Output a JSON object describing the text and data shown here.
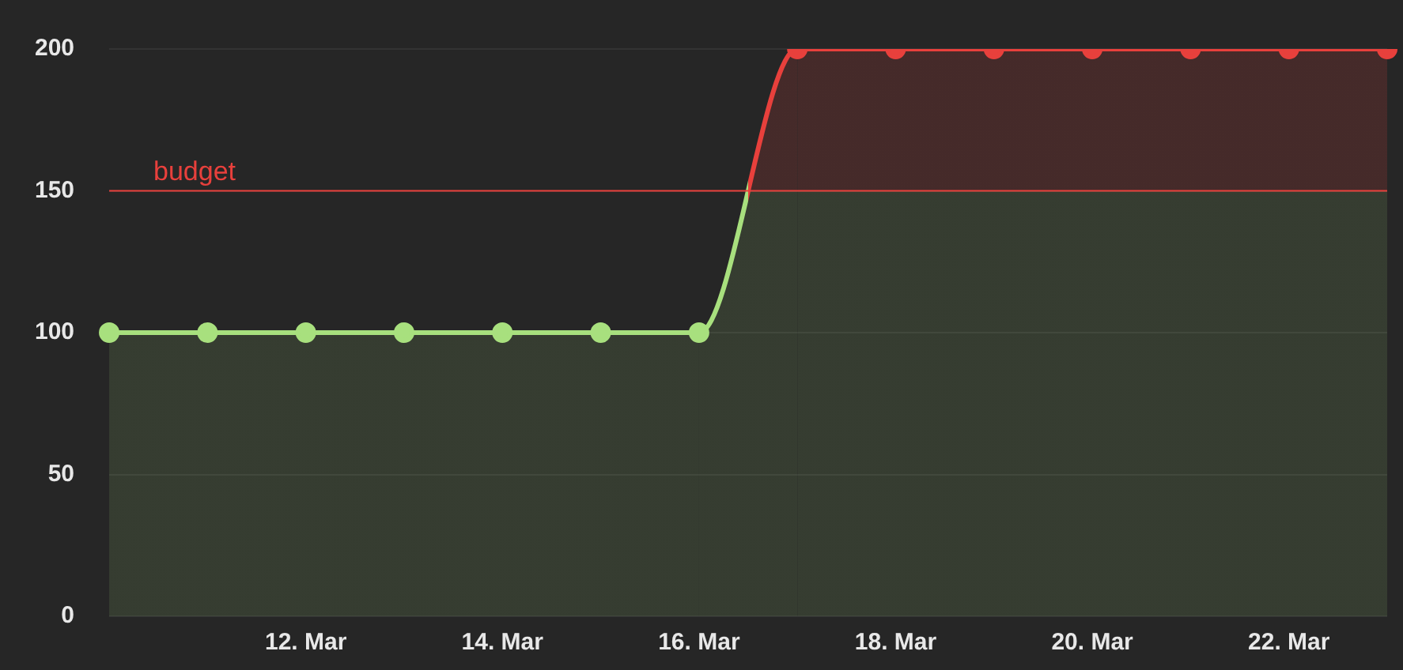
{
  "chart_data": {
    "type": "area",
    "categories": [
      null,
      null,
      "12. Mar",
      null,
      "14. Mar",
      null,
      "16. Mar",
      null,
      "18. Mar",
      null,
      "20. Mar",
      null,
      "22. Mar",
      null
    ],
    "series": [
      {
        "color": "#a8e07e",
        "colors": [
          "#a8e07e",
          "#a8e07e",
          "#a8e07e",
          "#a8e07e",
          "#a8e07e",
          "#a8e07e",
          "#a8e07e",
          "#e8403c",
          "#e8403c",
          "#e8403c",
          "#e8403c",
          "#e8403c",
          "#e8403c",
          "#e8403c"
        ],
        "values": [
          100,
          100,
          100,
          100,
          100,
          100,
          100,
          200,
          200,
          200,
          200,
          200,
          200,
          200
        ]
      }
    ],
    "ylim": [
      0,
      200
    ],
    "yticks": [
      0,
      50,
      100,
      150,
      200
    ],
    "grid": "y",
    "marker": "circle",
    "legend": false,
    "ref_lines": [
      {
        "axis": "y",
        "value": 150,
        "label": "budget",
        "color": "#e8403c"
      }
    ]
  }
}
